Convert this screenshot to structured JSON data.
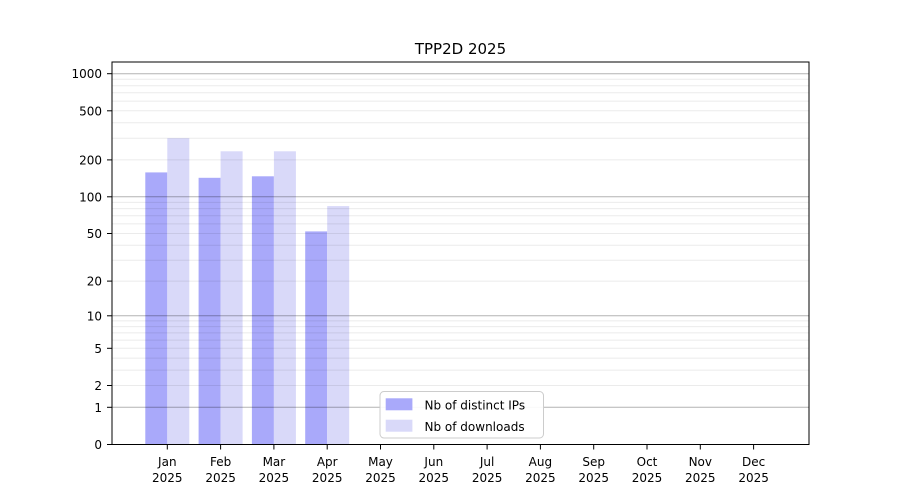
{
  "chart_data": {
    "type": "bar",
    "title": "TPP2D 2025",
    "categories": [
      "Jan",
      "Feb",
      "Mar",
      "Apr",
      "May",
      "Jun",
      "Jul",
      "Aug",
      "Sep",
      "Oct",
      "Nov",
      "Dec"
    ],
    "year_label": "2025",
    "series": [
      {
        "name": "Nb of distinct IPs",
        "color": "#a9a9fa",
        "values": [
          158,
          143,
          147,
          52,
          0,
          0,
          0,
          0,
          0,
          0,
          0,
          0
        ]
      },
      {
        "name": "Nb of downloads",
        "color": "#d9d9f9",
        "values": [
          300,
          235,
          235,
          84,
          0,
          0,
          0,
          0,
          0,
          0,
          0,
          0
        ]
      }
    ],
    "y_axis": {
      "scale": "symlog",
      "ticks": [
        0,
        1,
        2,
        5,
        10,
        20,
        50,
        100,
        200,
        500,
        1000
      ],
      "major_grid_values": [
        1,
        10,
        100,
        1000
      ],
      "minor_grid_decades": [
        1,
        10,
        100
      ],
      "range": [
        0,
        1250
      ]
    },
    "x_axis": {
      "label_line2": "2025"
    },
    "legend": {
      "position": "lower-center",
      "items": [
        "Nb of distinct IPs",
        "Nb of downloads"
      ]
    },
    "grid": "horizontal"
  },
  "colors": {
    "bar_distinct_ips": "#a9a9fa",
    "bar_downloads": "#d9d9f9",
    "grid_major": "rgba(0,0,0,0.30)",
    "grid_minor": "rgba(0,0,0,0.08)",
    "spine": "#000000",
    "legend_border": "#cccccc",
    "background": "#ffffff"
  }
}
